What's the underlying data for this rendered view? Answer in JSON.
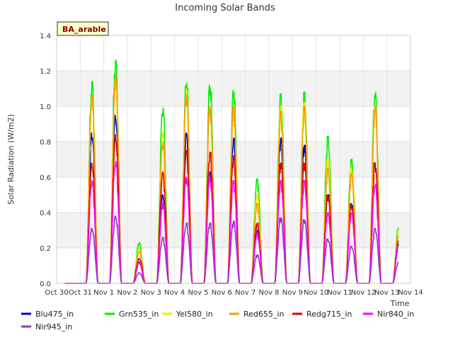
{
  "chart_data": {
    "type": "line",
    "title": "Incoming Solar Bands",
    "xlabel": "Time",
    "ylabel": "Solar Radiation (W/m2)",
    "badge": "BA_arable",
    "xlim": [
      0,
      15
    ],
    "ylim": [
      0,
      1.4
    ],
    "x_ticks": [
      "Oct 30",
      "Oct 31",
      "Nov 1",
      "Nov 2",
      "Nov 3",
      "Nov 4",
      "Nov 5",
      "Nov 6",
      "Nov 7",
      "Nov 8",
      "Nov 9",
      "Nov 10",
      "Nov 11",
      "Nov 12",
      "Nov 13",
      "Nov 14"
    ],
    "y_ticks": [
      "0.0",
      "0.2",
      "0.4",
      "0.6",
      "0.8",
      "1.0",
      "1.2",
      "1.4"
    ],
    "grid": true,
    "legend_position": "bottom",
    "days": [
      "Oct 31",
      "Nov 1",
      "Nov 2",
      "Nov 3",
      "Nov 4",
      "Nov 5",
      "Nov 6",
      "Nov 7",
      "Nov 8",
      "Nov 9",
      "Nov 10",
      "Nov 11",
      "Nov 12",
      "Nov 13"
    ],
    "series": [
      {
        "name": "Blu475_in",
        "color": "#0000cc",
        "peaks": [
          0.85,
          0.95,
          0.12,
          0.5,
          0.85,
          0.63,
          0.82,
          0.3,
          0.82,
          0.78,
          0.5,
          0.45,
          0.68,
          0.22
        ]
      },
      {
        "name": "Grn535_in",
        "color": "#00ee00",
        "peaks": [
          1.14,
          1.26,
          0.23,
          0.99,
          1.14,
          1.12,
          1.09,
          0.59,
          1.07,
          1.08,
          0.83,
          0.7,
          1.08,
          0.32
        ]
      },
      {
        "name": "Yel580_in",
        "color": "#eeee00",
        "peaks": [
          1.05,
          1.15,
          0.2,
          0.85,
          1.1,
          1.0,
          1.0,
          0.5,
          1.0,
          1.02,
          0.7,
          0.65,
          1.0,
          0.3
        ]
      },
      {
        "name": "Red655_in",
        "color": "#ff9900",
        "peaks": [
          1.06,
          1.17,
          0.18,
          0.8,
          1.07,
          1.0,
          1.0,
          0.45,
          0.97,
          1.0,
          0.65,
          0.62,
          1.0,
          0.28
        ]
      },
      {
        "name": "Redg715_in",
        "color": "#dd0000",
        "peaks": [
          0.68,
          0.84,
          0.14,
          0.63,
          0.75,
          0.74,
          0.72,
          0.34,
          0.68,
          0.68,
          0.5,
          0.45,
          0.68,
          0.24
        ]
      },
      {
        "name": "Nir840_in",
        "color": "#ff00ff",
        "peaks": [
          0.58,
          0.69,
          0.12,
          0.45,
          0.6,
          0.6,
          0.58,
          0.28,
          0.58,
          0.58,
          0.4,
          0.4,
          0.56,
          0.22
        ]
      },
      {
        "name": "Nir945_in",
        "color": "#9933cc",
        "peaks": [
          0.31,
          0.38,
          0.06,
          0.26,
          0.34,
          0.34,
          0.35,
          0.16,
          0.37,
          0.36,
          0.25,
          0.21,
          0.31,
          0.12
        ]
      }
    ]
  }
}
